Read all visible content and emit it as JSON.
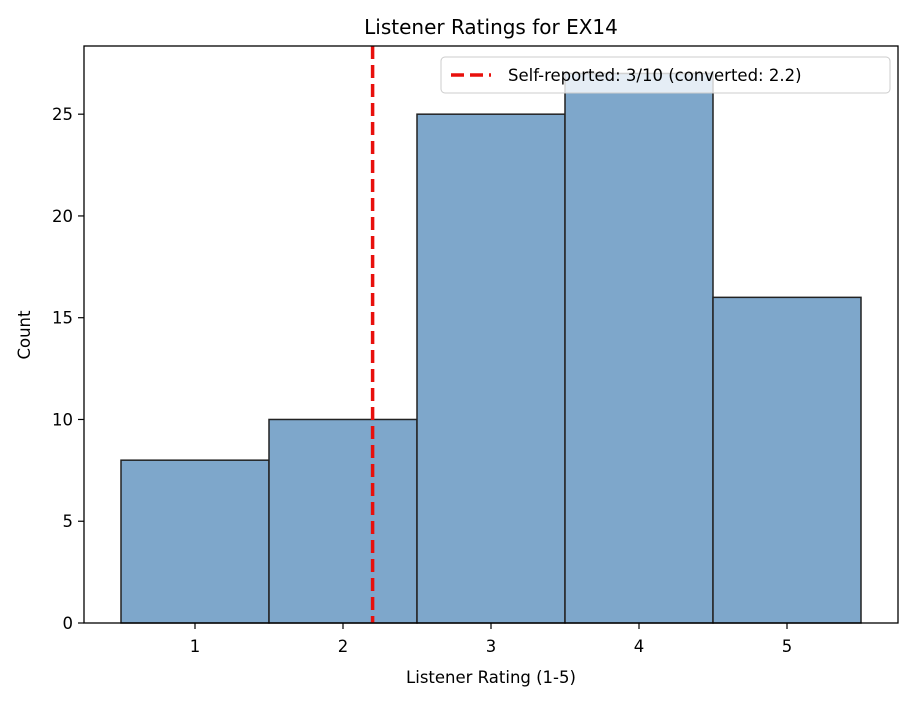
{
  "chart_data": {
    "type": "bar",
    "title": "Listener Ratings for EX14",
    "xlabel": "Listener Rating (1-5)",
    "ylabel": "Count",
    "categories": [
      1,
      2,
      3,
      4,
      5
    ],
    "values": [
      8,
      10,
      25,
      27,
      16
    ],
    "xlim": [
      0.25,
      5.75
    ],
    "ylim": [
      0,
      28.35
    ],
    "xticks": [
      "1",
      "2",
      "3",
      "4",
      "5"
    ],
    "yticks": [
      0,
      5,
      10,
      15,
      20,
      25
    ],
    "grid": false,
    "bar_color": "#7ea7cb",
    "bar_edge_color": "#222222",
    "reference_line": {
      "x": 2.2,
      "label": "Self-reported: 3/10 (converted: 2.2)",
      "color": "#e8100c",
      "style": "dashed"
    },
    "legend": {
      "position": "top-right",
      "entries": [
        "Self-reported: 3/10 (converted: 2.2)"
      ]
    }
  }
}
